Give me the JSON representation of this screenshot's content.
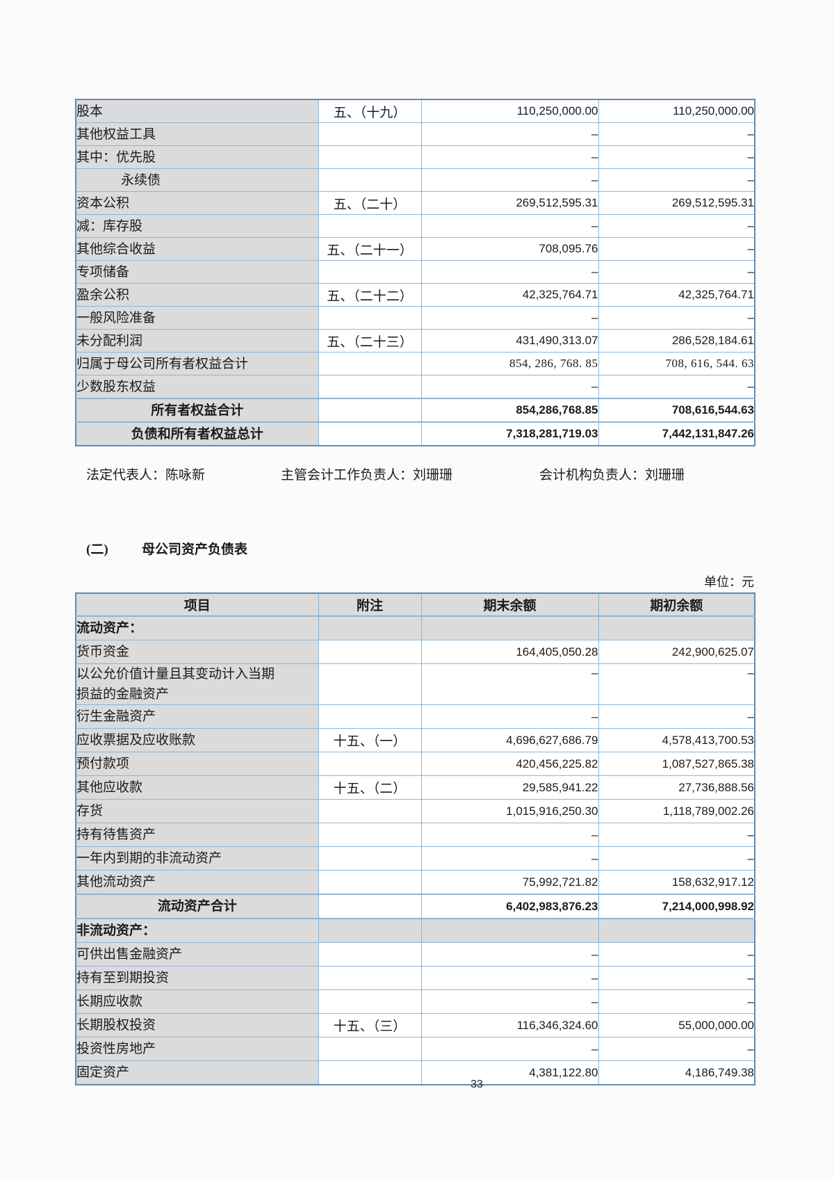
{
  "colors": {
    "table_border": "#8FB4D4",
    "table_border_outer": "#5D8CB4",
    "label_column_shade": "#DBDBDB",
    "text": "#1B1B1B",
    "page_background": "#FBFBFB"
  },
  "equity_table": {
    "rows": [
      {
        "label": "股本",
        "note": "五、（十九）",
        "end": "110,250,000.00",
        "begin": "110,250,000.00"
      },
      {
        "label": "其他权益工具",
        "note": "",
        "end": "–",
        "begin": "–"
      },
      {
        "label": "其中：优先股",
        "note": "",
        "end": "–",
        "begin": "–"
      },
      {
        "label": "永续债",
        "note": "",
        "end": "–",
        "begin": "–",
        "indent": true
      },
      {
        "label": "资本公积",
        "note": "五、（二十）",
        "end": "269,512,595.31",
        "begin": "269,512,595.31"
      },
      {
        "label": "减：库存股",
        "note": "",
        "end": "–",
        "begin": "–"
      },
      {
        "label": "其他综合收益",
        "note": "五、（二十一）",
        "end": "708,095.76",
        "begin": "–"
      },
      {
        "label": "专项储备",
        "note": "",
        "end": "–",
        "begin": "–"
      },
      {
        "label": "盈余公积",
        "note": "五、（二十二）",
        "end": "42,325,764.71",
        "begin": "42,325,764.71"
      },
      {
        "label": "一般风险准备",
        "note": "",
        "end": "–",
        "begin": "–"
      },
      {
        "label": "未分配利润",
        "note": "五、（二十三）",
        "end": "431,490,313.07",
        "begin": "286,528,184.61"
      },
      {
        "label": "归属于母公司所有者权益合计",
        "note": "",
        "end": "854, 286, 768. 85",
        "begin": "708, 616, 544. 63",
        "serif": true
      },
      {
        "label": "少数股东权益",
        "note": "",
        "end": "–",
        "begin": "–"
      },
      {
        "label": "所有者权益合计",
        "note": "",
        "end": "854,286,768.85",
        "begin": "708,616,544.63",
        "total": true
      },
      {
        "label": "负债和所有者权益总计",
        "note": "",
        "end": "7,318,281,719.03",
        "begin": "7,442,131,847.26",
        "total": true
      }
    ]
  },
  "signatures": {
    "legal_rep": "法定代表人：陈咏新",
    "accounting_head": "主管会计工作负责人：刘珊珊",
    "accounting_org_head": "会计机构负责人：刘珊珊"
  },
  "section": {
    "index": "(二)",
    "title": "母公司资产负债表"
  },
  "unit_label": "单位：元",
  "balance_sheet_table": {
    "headers": [
      "项目",
      "附注",
      "期末余额",
      "期初余额"
    ],
    "rows": [
      {
        "label": "流动资产：",
        "section": true
      },
      {
        "label": "货币资金",
        "note": "",
        "end": "164,405,050.28",
        "begin": "242,900,625.07"
      },
      {
        "label": "以公允价值计量且其变动计入当期\n损益的金融资产",
        "note": "",
        "end": "–",
        "begin": "–",
        "tall": true
      },
      {
        "label": "衍生金融资产",
        "note": "",
        "end": "–",
        "begin": "–"
      },
      {
        "label": "应收票据及应收账款",
        "note": "十五、（一）",
        "end": "4,696,627,686.79",
        "begin": "4,578,413,700.53"
      },
      {
        "label": "预付款项",
        "note": "",
        "end": "420,456,225.82",
        "begin": "1,087,527,865.38"
      },
      {
        "label": "其他应收款",
        "note": "十五、（二）",
        "end": "29,585,941.22",
        "begin": "27,736,888.56"
      },
      {
        "label": "存货",
        "note": "",
        "end": "1,015,916,250.30",
        "begin": "1,118,789,002.26"
      },
      {
        "label": "持有待售资产",
        "note": "",
        "end": "–",
        "begin": "–"
      },
      {
        "label": "一年内到期的非流动资产",
        "note": "",
        "end": "–",
        "begin": "–"
      },
      {
        "label": "其他流动资产",
        "note": "",
        "end": "75,992,721.82",
        "begin": "158,632,917.12"
      },
      {
        "label": "流动资产合计",
        "note": "",
        "end": "6,402,983,876.23",
        "begin": "7,214,000,998.92",
        "total": true
      },
      {
        "label": "非流动资产：",
        "section": true
      },
      {
        "label": "可供出售金融资产",
        "note": "",
        "end": "–",
        "begin": "–"
      },
      {
        "label": "持有至到期投资",
        "note": "",
        "end": "–",
        "begin": "–"
      },
      {
        "label": "长期应收款",
        "note": "",
        "end": "–",
        "begin": "–"
      },
      {
        "label": "长期股权投资",
        "note": "十五、（三）",
        "end": "116,346,324.60",
        "begin": "55,000,000.00"
      },
      {
        "label": "投资性房地产",
        "note": "",
        "end": "–",
        "begin": "–"
      },
      {
        "label": "固定资产",
        "note": "",
        "end": "4,381,122.80",
        "begin": "4,186,749.38"
      }
    ]
  },
  "page_number": "33"
}
